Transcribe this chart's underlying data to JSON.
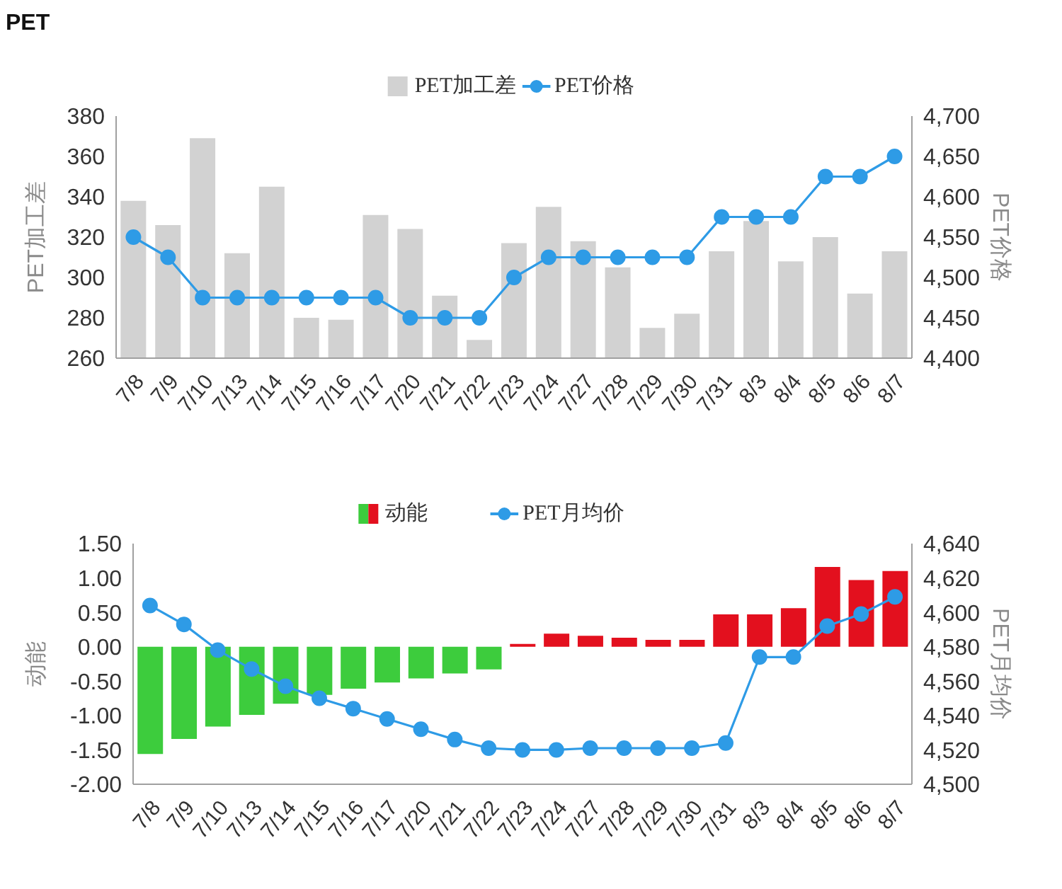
{
  "chart_data": [
    {
      "type": "bar",
      "title": "PET",
      "categories": [
        "7/8",
        "7/9",
        "7/10",
        "7/13",
        "7/14",
        "7/15",
        "7/16",
        "7/17",
        "7/20",
        "7/21",
        "7/22",
        "7/23",
        "7/24",
        "7/27",
        "7/28",
        "7/29",
        "7/30",
        "7/31",
        "8/3",
        "8/4",
        "8/5",
        "8/6",
        "8/7"
      ],
      "series": [
        {
          "name": "PET加工差",
          "color": "#d2d2d2",
          "values": [
            338,
            326,
            369,
            312,
            345,
            280,
            279,
            331,
            324,
            291,
            269,
            317,
            335,
            318,
            305,
            275,
            282,
            313,
            328,
            308,
            320,
            292,
            313
          ]
        },
        {
          "name": "PET价格",
          "type": "line",
          "axis": "y2",
          "color": "#2e9be6",
          "values": [
            4550,
            4525,
            4475,
            4475,
            4475,
            4475,
            4475,
            4475,
            4450,
            4450,
            4450,
            4500,
            4525,
            4525,
            4525,
            4525,
            4525,
            4575,
            4575,
            4575,
            4625,
            4625,
            4650
          ]
        }
      ],
      "ylabel": "PET加工差",
      "y2label": "PET价格",
      "ylim": [
        260,
        380
      ],
      "yticks": [
        260,
        280,
        300,
        320,
        340,
        360,
        380
      ],
      "y2lim": [
        4400,
        4700
      ],
      "y2ticks": [
        {
          "value": 4400,
          "label": "4,400"
        },
        {
          "value": 4450,
          "label": "4,450"
        },
        {
          "value": 4500,
          "label": "4,500"
        },
        {
          "value": 4550,
          "label": "4,550"
        },
        {
          "value": 4600,
          "label": "4,600"
        },
        {
          "value": 4650,
          "label": "4,650"
        },
        {
          "value": 4700,
          "label": "4,700"
        }
      ],
      "legend": "top",
      "marker": "circle"
    },
    {
      "type": "bar",
      "categories": [
        "7/8",
        "7/9",
        "7/10",
        "7/13",
        "7/14",
        "7/15",
        "7/16",
        "7/17",
        "7/20",
        "7/21",
        "7/22",
        "7/23",
        "7/24",
        "7/27",
        "7/28",
        "7/29",
        "7/30",
        "7/31",
        "8/3",
        "8/4",
        "8/5",
        "8/6",
        "8/7"
      ],
      "series": [
        {
          "name": "动能",
          "colors": [
            "#3dcc3d",
            "#3dcc3d",
            "#3dcc3d",
            "#3dcc3d",
            "#3dcc3d",
            "#3dcc3d",
            "#3dcc3d",
            "#3dcc3d",
            "#3dcc3d",
            "#3dcc3d",
            "#3dcc3d",
            "#e3101e",
            "#e3101e",
            "#e3101e",
            "#e3101e",
            "#e3101e",
            "#e3101e",
            "#e3101e",
            "#e3101e",
            "#e3101e",
            "#e3101e",
            "#e3101e",
            "#e3101e"
          ],
          "values": [
            -1.56,
            -1.34,
            -1.16,
            -0.99,
            -0.83,
            -0.7,
            -0.61,
            -0.52,
            -0.46,
            -0.39,
            -0.33,
            0.04,
            0.19,
            0.16,
            0.13,
            0.1,
            0.1,
            0.47,
            0.47,
            0.56,
            1.16,
            0.97,
            1.1
          ]
        },
        {
          "name": "PET月均价",
          "type": "line",
          "axis": "y2",
          "color": "#2e9be6",
          "values": [
            4604,
            4593,
            4578,
            4567,
            4557,
            4550,
            4544,
            4538,
            4532,
            4526,
            4521,
            4520,
            4520,
            4521,
            4521,
            4521,
            4521,
            4524,
            4574,
            4574,
            4592,
            4599,
            4609
          ]
        }
      ],
      "ylabel": "动能",
      "y2label": "PET月均价",
      "ylim": [
        -2,
        1.5
      ],
      "yticks": [
        {
          "value": -2,
          "label": "-2.00"
        },
        {
          "value": -1.5,
          "label": "-1.50"
        },
        {
          "value": -1,
          "label": "-1.00"
        },
        {
          "value": -0.5,
          "label": "-0.50"
        },
        {
          "value": 0,
          "label": "0.00"
        },
        {
          "value": 0.5,
          "label": "0.50"
        },
        {
          "value": 1,
          "label": "1.00"
        },
        {
          "value": 1.5,
          "label": "1.50"
        }
      ],
      "y2lim": [
        4500,
        4640
      ],
      "y2ticks": [
        {
          "value": 4500,
          "label": "4,500"
        },
        {
          "value": 4520,
          "label": "4,520"
        },
        {
          "value": 4540,
          "label": "4,540"
        },
        {
          "value": 4560,
          "label": "4,560"
        },
        {
          "value": 4580,
          "label": "4,580"
        },
        {
          "value": 4600,
          "label": "4,600"
        },
        {
          "value": 4620,
          "label": "4,620"
        },
        {
          "value": 4640,
          "label": "4,640"
        }
      ],
      "legend": "top",
      "marker": "circle"
    }
  ]
}
